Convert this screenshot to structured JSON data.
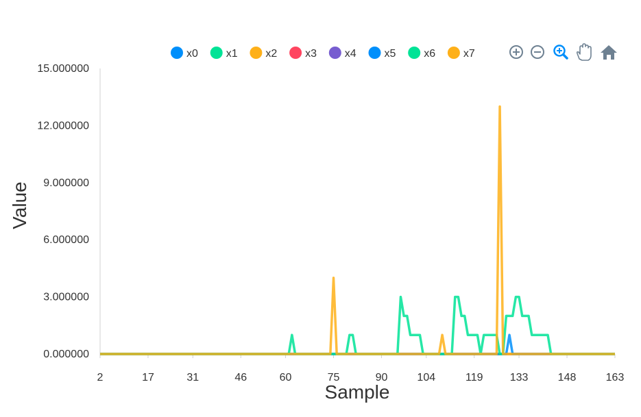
{
  "chart_data": {
    "type": "line",
    "xlabel": "Sample",
    "ylabel": "Value",
    "xlim": [
      2,
      163
    ],
    "ylim": [
      0,
      15
    ],
    "x_ticks": [
      "2",
      "17",
      "31",
      "46",
      "60",
      "75",
      "90",
      "104",
      "119",
      "133",
      "148",
      "163"
    ],
    "y_ticks": [
      "0.000000",
      "3.000000",
      "6.000000",
      "9.000000",
      "12.000000",
      "15.000000"
    ],
    "legend_position": "top",
    "grid": false,
    "series": [
      {
        "name": "x0",
        "color": "#008ffb",
        "points": [
          [
            2,
            0
          ],
          [
            163,
            0
          ]
        ]
      },
      {
        "name": "x1",
        "color": "#00e396",
        "points": [
          [
            2,
            0
          ],
          [
            163,
            0
          ]
        ]
      },
      {
        "name": "x2",
        "color": "#feb019",
        "points": [
          [
            2,
            0
          ],
          [
            163,
            0
          ]
        ]
      },
      {
        "name": "x3",
        "color": "#ff4560",
        "points": [
          [
            2,
            0
          ],
          [
            163,
            0
          ]
        ]
      },
      {
        "name": "x4",
        "color": "#775dd0",
        "points": [
          [
            2,
            0
          ],
          [
            163,
            0
          ]
        ]
      },
      {
        "name": "x5",
        "color": "#008ffb",
        "points": [
          [
            2,
            0
          ],
          [
            129,
            0
          ],
          [
            130,
            1
          ],
          [
            131,
            0
          ],
          [
            163,
            0
          ]
        ]
      },
      {
        "name": "x6",
        "color": "#00e396",
        "points": [
          [
            2,
            0
          ],
          [
            61,
            0
          ],
          [
            62,
            1
          ],
          [
            63,
            0
          ],
          [
            79,
            0
          ],
          [
            80,
            1
          ],
          [
            81,
            1
          ],
          [
            82,
            0
          ],
          [
            95,
            0
          ],
          [
            96,
            3
          ],
          [
            97,
            2
          ],
          [
            98,
            2
          ],
          [
            99,
            1
          ],
          [
            100,
            1
          ],
          [
            101,
            1
          ],
          [
            102,
            1
          ],
          [
            103,
            0
          ],
          [
            112,
            0
          ],
          [
            113,
            3
          ],
          [
            114,
            3
          ],
          [
            115,
            2
          ],
          [
            116,
            2
          ],
          [
            117,
            1
          ],
          [
            118,
            1
          ],
          [
            119,
            1
          ],
          [
            120,
            1
          ],
          [
            121,
            0
          ],
          [
            122,
            1
          ],
          [
            123,
            1
          ],
          [
            124,
            1
          ],
          [
            125,
            1
          ],
          [
            126,
            1
          ],
          [
            127,
            0
          ],
          [
            128,
            0
          ],
          [
            129,
            2
          ],
          [
            130,
            2
          ],
          [
            131,
            2
          ],
          [
            132,
            3
          ],
          [
            133,
            3
          ],
          [
            134,
            2
          ],
          [
            135,
            2
          ],
          [
            136,
            2
          ],
          [
            137,
            1
          ],
          [
            138,
            1
          ],
          [
            139,
            1
          ],
          [
            140,
            1
          ],
          [
            141,
            1
          ],
          [
            142,
            1
          ],
          [
            143,
            0
          ],
          [
            163,
            0
          ]
        ]
      },
      {
        "name": "x7",
        "color": "#feb019",
        "points": [
          [
            2,
            0
          ],
          [
            74,
            0
          ],
          [
            75,
            4
          ],
          [
            76,
            0
          ],
          [
            108,
            0
          ],
          [
            109,
            1
          ],
          [
            110,
            0
          ],
          [
            126,
            0
          ],
          [
            127,
            13
          ],
          [
            128,
            0
          ],
          [
            163,
            0
          ]
        ]
      }
    ]
  },
  "toolbar": [
    {
      "name": "zoom-in-icon",
      "color": "#6e8192"
    },
    {
      "name": "zoom-out-icon",
      "color": "#6e8192"
    },
    {
      "name": "selection-zoom-icon",
      "color": "#008ffb"
    },
    {
      "name": "pan-icon",
      "color": "#6e8192"
    },
    {
      "name": "reset-home-icon",
      "color": "#6e8192"
    }
  ]
}
